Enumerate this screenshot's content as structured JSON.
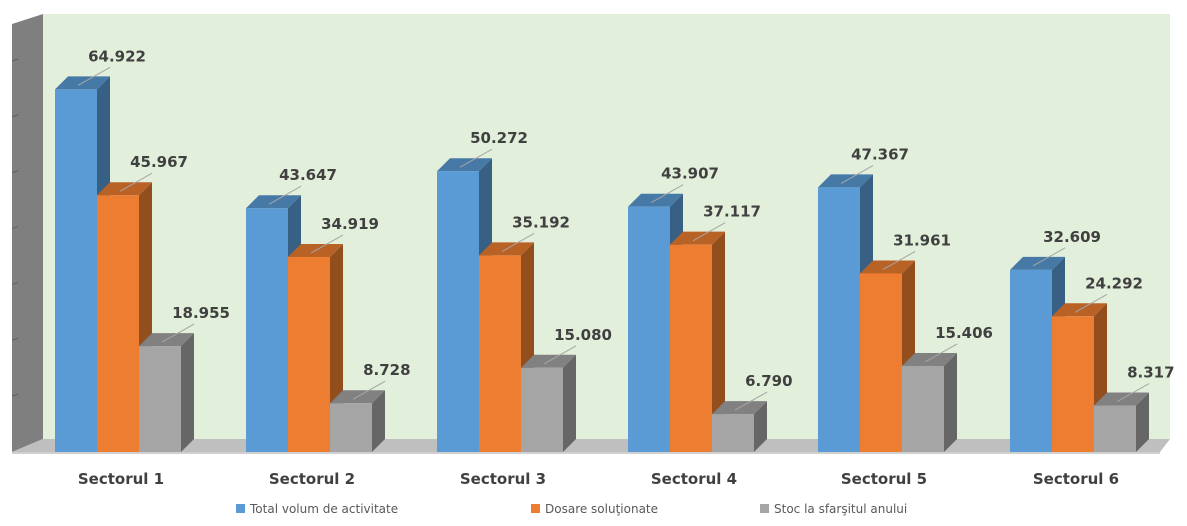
{
  "chart_data": {
    "type": "bar",
    "categories": [
      "Sectorul 1",
      "Sectorul 2",
      "Sectorul 3",
      "Sectorul 4",
      "Sectorul 5",
      "Sectorul 6"
    ],
    "series": [
      {
        "name": "Total volum de activitate",
        "values": [
          64922,
          43647,
          50272,
          43907,
          47367,
          32609
        ],
        "labels": [
          "64.922",
          "43.647",
          "50.272",
          "43.907",
          "47.367",
          "32.609"
        ],
        "color": "#5B9BD5"
      },
      {
        "name": "Dosare soluţionate",
        "values": [
          45967,
          34919,
          35192,
          37117,
          31961,
          24292
        ],
        "labels": [
          "45.967",
          "34.919",
          "35.192",
          "37.117",
          "31.961",
          "24.292"
        ],
        "color": "#ED7D31"
      },
      {
        "name": "Stoc la sfarşitul anului",
        "values": [
          18955,
          8728,
          15080,
          6790,
          15406,
          8317
        ],
        "labels": [
          "18.955",
          "8.728",
          "15.080",
          "6.790",
          "15.406",
          "8.317"
        ],
        "color": "#A5A5A5"
      }
    ],
    "ylim": [
      0,
      70000
    ],
    "style": "3d-clustered-column",
    "legend_position": "bottom",
    "plot_background": "#E2EFDA",
    "side_wall_color": "#7F7F7F",
    "floor_color": "#BFBFBF"
  }
}
